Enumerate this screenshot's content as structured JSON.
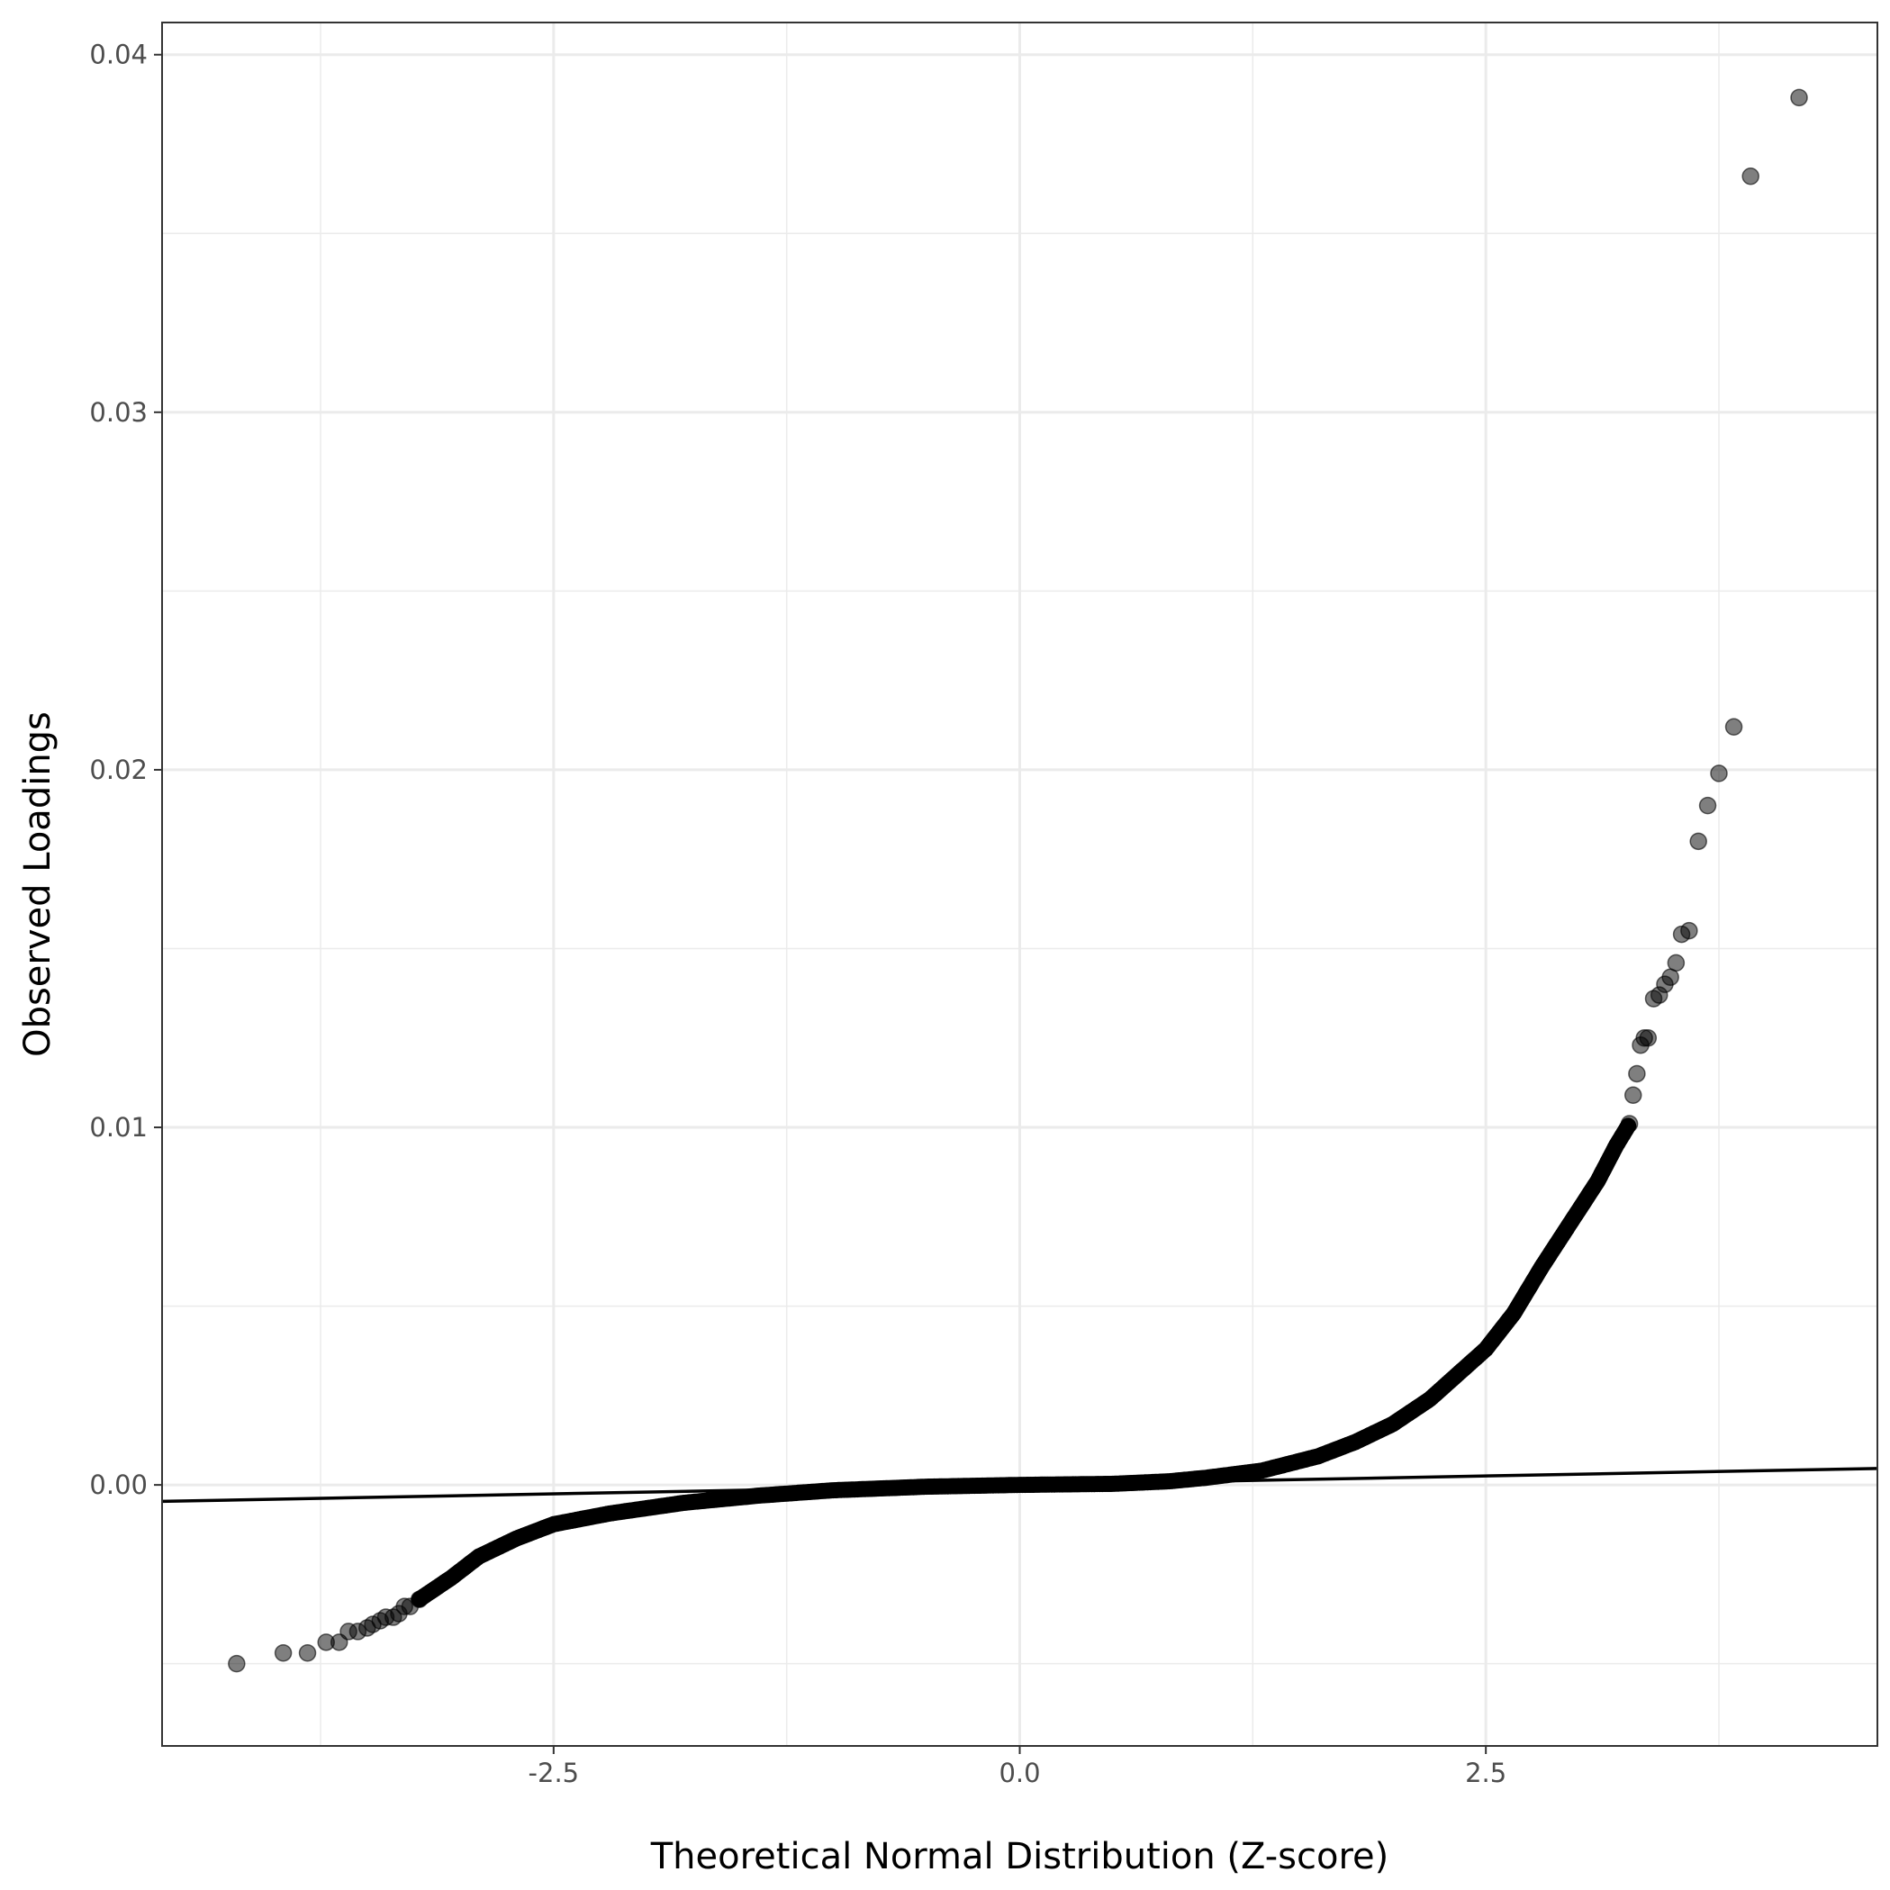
{
  "chart_data": {
    "type": "scatter",
    "xlabel": "Theoretical Normal Distribution (Z-score)",
    "ylabel": "Observed Loadings",
    "xlim": [
      -4.6,
      4.6
    ],
    "ylim": [
      -0.0073,
      0.0409
    ],
    "x_ticks": [
      -2.5,
      0.0,
      2.5
    ],
    "x_tick_labels": [
      "-2.5",
      "0.0",
      "2.5"
    ],
    "y_ticks": [
      0.0,
      0.01,
      0.02,
      0.03,
      0.04
    ],
    "y_tick_labels": [
      "0.00",
      "0.01",
      "0.02",
      "0.03",
      "0.04"
    ],
    "grid": true,
    "theme": "white background, light grey grid, black panel border",
    "point_color": "#000000",
    "point_alpha": 0.5,
    "reference_line": {
      "slope": 0.0001,
      "intercept": 0.0,
      "color": "#000000"
    },
    "outlier_points": [
      [
        -4.2,
        -0.005
      ],
      [
        -3.95,
        -0.0047
      ],
      [
        -3.82,
        -0.0047
      ],
      [
        -3.72,
        -0.0044
      ],
      [
        -3.65,
        -0.0044
      ],
      [
        -3.6,
        -0.0041
      ],
      [
        -3.55,
        -0.0041
      ],
      [
        -3.5,
        -0.004
      ],
      [
        -3.47,
        -0.0039
      ],
      [
        -3.43,
        -0.0038
      ],
      [
        -3.4,
        -0.0037
      ],
      [
        -3.36,
        -0.0037
      ],
      [
        -3.33,
        -0.0036
      ],
      [
        -3.3,
        -0.0034
      ],
      [
        -3.27,
        -0.0034
      ],
      [
        -3.22,
        -0.0032
      ],
      [
        3.27,
        0.0101
      ],
      [
        3.29,
        0.0109
      ],
      [
        3.31,
        0.0115
      ],
      [
        3.33,
        0.0123
      ],
      [
        3.35,
        0.0125
      ],
      [
        3.37,
        0.0125
      ],
      [
        3.4,
        0.0136
      ],
      [
        3.43,
        0.0137
      ],
      [
        3.46,
        0.014
      ],
      [
        3.49,
        0.0142
      ],
      [
        3.52,
        0.0146
      ],
      [
        3.55,
        0.0154
      ],
      [
        3.59,
        0.0155
      ],
      [
        3.64,
        0.018
      ],
      [
        3.69,
        0.019
      ],
      [
        3.75,
        0.0199
      ],
      [
        3.83,
        0.0212
      ],
      [
        3.92,
        0.0366
      ],
      [
        4.18,
        0.0388
      ]
    ],
    "dense_curve": [
      [
        -3.22,
        -0.0032
      ],
      [
        -3.05,
        -0.0026
      ],
      [
        -2.9,
        -0.002
      ],
      [
        -2.7,
        -0.0015
      ],
      [
        -2.5,
        -0.0011
      ],
      [
        -2.2,
        -0.0008
      ],
      [
        -1.8,
        -0.0005
      ],
      [
        -1.4,
        -0.0003
      ],
      [
        -1.0,
        -0.00015
      ],
      [
        -0.5,
        -5e-05
      ],
      [
        0.0,
        0.0
      ],
      [
        0.5,
        3e-05
      ],
      [
        0.8,
        0.0001
      ],
      [
        1.0,
        0.0002
      ],
      [
        1.3,
        0.0004
      ],
      [
        1.6,
        0.0008
      ],
      [
        1.8,
        0.0012
      ],
      [
        2.0,
        0.0017
      ],
      [
        2.2,
        0.0024
      ],
      [
        2.35,
        0.0031
      ],
      [
        2.5,
        0.0038
      ],
      [
        2.65,
        0.0048
      ],
      [
        2.8,
        0.0061
      ],
      [
        2.95,
        0.0073
      ],
      [
        3.1,
        0.0085
      ],
      [
        3.2,
        0.0095
      ],
      [
        3.27,
        0.0101
      ]
    ]
  }
}
